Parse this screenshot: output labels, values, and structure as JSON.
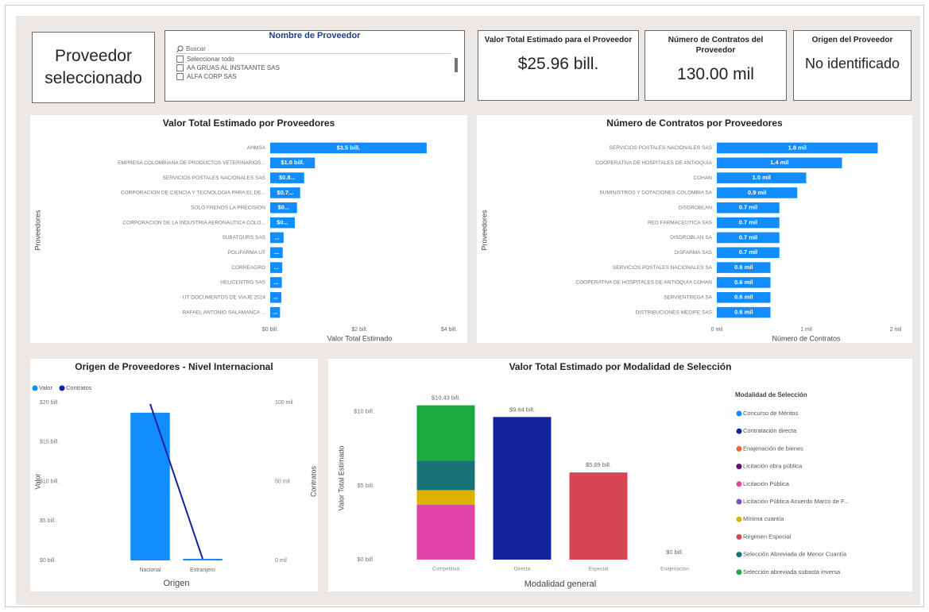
{
  "selected_card": {
    "label": "Proveedor seleccionado"
  },
  "slicer": {
    "title": "Nombre de Proveedor",
    "search": "Buscar",
    "items": [
      "Seleccionar todo",
      "AA GRUAS AL INSTAANTE SAS",
      "ALFA CORP SAS"
    ]
  },
  "cards": [
    {
      "title": "Valor Total Estimado para el Proveedor",
      "value": "$25.96 bill."
    },
    {
      "title": "Número de Contratos del Proveedor",
      "value": "130.00 mil"
    },
    {
      "title": "Origen del Proveedor",
      "value": "No identificado"
    }
  ],
  "chart_data": [
    {
      "type": "hbar",
      "title": "Valor Total Estimado por Proveedores",
      "x_label": "Valor Total Estimado",
      "y_label": "Proveedores",
      "color": "#118DFF",
      "grid": false,
      "categories": [
        "AHMSA",
        "EMPRESA COLOMBIANA DE PRODUCTOS VETERINARIOS...",
        "SERVICIOS POSTALES NACIONALES SAS",
        "CORPORACION DE CIENCIA Y TECNOLOGIA PARA EL DE...",
        "SOLO FRENOS LA PRECISION",
        "CORPORACION DE LA INDUSTRIA AERONAUTICA COLO...",
        "SUBATOURS SAS",
        "POLIFARMA UT",
        "CORREAGRO",
        "HELICENTRO SAS",
        "UT DOCUMENTOS DE VIAJE 2024",
        "RAFAEL ANTONIO SALAMANCA ..."
      ],
      "values": [
        3.5,
        1.0,
        0.76,
        0.67,
        0.6,
        0.55,
        0.3,
        0.28,
        0.27,
        0.26,
        0.25,
        0.22
      ],
      "value_labels": [
        "$3.5 bill.",
        "$1.0 bill.",
        "$0.8...",
        "$0.7...",
        "$0...",
        "$0...",
        "...",
        "...",
        "...",
        "...",
        "...",
        "..."
      ],
      "xlim": [
        0,
        4
      ],
      "xticks": [
        {
          "value": 0,
          "label": "$0 bill."
        },
        {
          "value": 2,
          "label": "$2 bill."
        },
        {
          "value": 4,
          "label": "$4 bill."
        }
      ]
    },
    {
      "type": "hbar",
      "title": "Número de Contratos por Proveedores",
      "x_label": "Número de Contratos",
      "y_label": "Proveedores",
      "color": "#118DFF",
      "grid": false,
      "categories": [
        "SERVICIOS POSTALES NACIONALES SAS",
        "COOPERATIVA DE HOSPITALES DE ANTIOQUIA",
        "COHAN",
        "SUMINISTROS Y DOTACIONES COLOMBIA SA",
        "DISDROBLAN",
        "RED FARMACEUTICA SAS",
        "DISDROBLAN SA",
        "DISFARMA SAS",
        "SERVICIOS POSTALES NACIONALES SA",
        "COOPERATIVA DE HOSPITALES DE ANTIOQUIA COHAN",
        "SERVIENTREGA SA",
        "DISTRIBUCIONES MEDIFE SAS"
      ],
      "values": [
        1.8,
        1.4,
        1.0,
        0.9,
        0.7,
        0.7,
        0.7,
        0.7,
        0.6,
        0.6,
        0.6,
        0.6
      ],
      "value_labels": [
        "1.8 mil",
        "1.4 mil",
        "1.0 mil",
        "0.9 mil",
        "0.7 mil",
        "0.7 mil",
        "0.7 mil",
        "0.7 mil",
        "0.6 mil",
        "0.6 mil",
        "0.6 mil",
        "0.6 mil"
      ],
      "xlim": [
        0,
        2
      ],
      "xticks": [
        {
          "value": 0,
          "label": "0 mil"
        },
        {
          "value": 1,
          "label": "1 mil"
        },
        {
          "value": 2,
          "label": "2 mil"
        }
      ]
    },
    {
      "type": "combo",
      "title": "Origen de Proveedores - Nivel Internacional",
      "x_label": "Origen",
      "y_label": "Valor",
      "y2_label": "Contratos",
      "legend": "top-left",
      "grid": false,
      "categories": [
        "Nacional",
        "Extranjero"
      ],
      "series": [
        {
          "name": "Valor",
          "type": "bar",
          "color": "#118DFF",
          "values": [
            18.7,
            0.2
          ]
        },
        {
          "name": "Contratos",
          "type": "line",
          "color": "#12239E",
          "axis": "y2",
          "values": [
            99,
            1
          ]
        }
      ],
      "ylim": [
        0,
        20
      ],
      "yticks": [
        {
          "value": 0,
          "label": "$0 bill."
        },
        {
          "value": 5,
          "label": "$5 bill."
        },
        {
          "value": 10,
          "label": "$10 bill."
        },
        {
          "value": 15,
          "label": "$15 bill."
        },
        {
          "value": 20,
          "label": "$20 bill."
        }
      ],
      "y2lim": [
        0,
        100
      ],
      "y2ticks": [
        {
          "value": 0,
          "label": "0 mil"
        },
        {
          "value": 50,
          "label": "50 mil"
        },
        {
          "value": 100,
          "label": "100 mil"
        }
      ]
    },
    {
      "type": "stacked_bar",
      "title": "Valor Total Estimado por Modalidad de Selección",
      "x_label": "Modalidad general",
      "y_label": "Valor Total Estimado",
      "legend_title": "Modalidad de Selección",
      "legend": "right",
      "grid": false,
      "categories": [
        "Competitiva",
        "Directa",
        "Especial",
        "Enajenación"
      ],
      "total_labels": [
        "$10.43 bill.",
        "$9.64 bill.",
        "$5.89 bill.",
        "$0 bill."
      ],
      "series": [
        {
          "name": "Concurso de Méritos",
          "color": "#118DFF",
          "values": [
            null,
            null,
            null,
            null
          ]
        },
        {
          "name": "Contratación directa",
          "color": "#12239E",
          "values": [
            null,
            9.64,
            null,
            null
          ]
        },
        {
          "name": "Enajenación de bienes",
          "color": "#E66C37",
          "values": [
            null,
            null,
            null,
            0
          ]
        },
        {
          "name": "Licitación obra pública",
          "color": "#6B007B",
          "values": [
            null,
            null,
            null,
            null
          ]
        },
        {
          "name": "Licitación Pública",
          "color": "#E044A7",
          "values": [
            3.7,
            null,
            null,
            null
          ]
        },
        {
          "name": "Licitación Pública Acuerdo Marco de F...",
          "color": "#744EC2",
          "values": [
            null,
            null,
            null,
            null
          ]
        },
        {
          "name": "Mínima cuantía",
          "color": "#D9B300",
          "values": [
            1.0,
            null,
            null,
            null
          ]
        },
        {
          "name": "Régimen Especial",
          "color": "#D64550",
          "values": [
            null,
            null,
            5.89,
            null
          ]
        },
        {
          "name": "Selección Abreviada de Menor Cuantía",
          "color": "#197278",
          "values": [
            2.0,
            null,
            null,
            null
          ]
        },
        {
          "name": "Selección abreviada subasta inversa",
          "color": "#1AAB40",
          "values": [
            3.73,
            null,
            null,
            null
          ]
        }
      ],
      "ylim": [
        0,
        11
      ],
      "yticks": [
        {
          "value": 0,
          "label": "$0 bill."
        },
        {
          "value": 5,
          "label": "$5 bill."
        },
        {
          "value": 10,
          "label": "$10 bill."
        }
      ]
    }
  ]
}
